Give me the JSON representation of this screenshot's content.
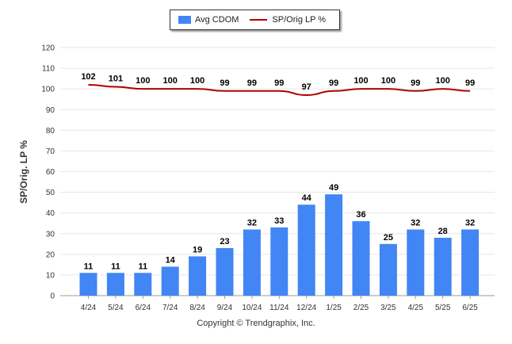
{
  "chart_data": {
    "type": "bar",
    "categories": [
      "4/24",
      "5/24",
      "6/24",
      "7/24",
      "8/24",
      "9/24",
      "10/24",
      "11/24",
      "12/24",
      "1/25",
      "2/25",
      "3/25",
      "4/25",
      "5/25",
      "6/25"
    ],
    "series": [
      {
        "name": "Avg CDOM",
        "type": "bar",
        "color": "#4285f4",
        "values": [
          11,
          11,
          11,
          14,
          19,
          23,
          32,
          33,
          44,
          49,
          36,
          25,
          32,
          28,
          32
        ]
      },
      {
        "name": "SP/Orig LP %",
        "type": "line",
        "color": "#b00000",
        "values": [
          102,
          101,
          100,
          100,
          100,
          99,
          99,
          99,
          97,
          99,
          100,
          100,
          99,
          100,
          99
        ]
      }
    ],
    "ylabel": "SP/Orig. LP %",
    "ylim": [
      0,
      120
    ],
    "yticks": [
      0,
      10,
      20,
      30,
      40,
      50,
      60,
      70,
      80,
      90,
      100,
      110,
      120
    ],
    "grid": true,
    "legend_position": "top-center"
  },
  "footer": {
    "copyright": "Copyright © Trendgraphix, Inc."
  }
}
